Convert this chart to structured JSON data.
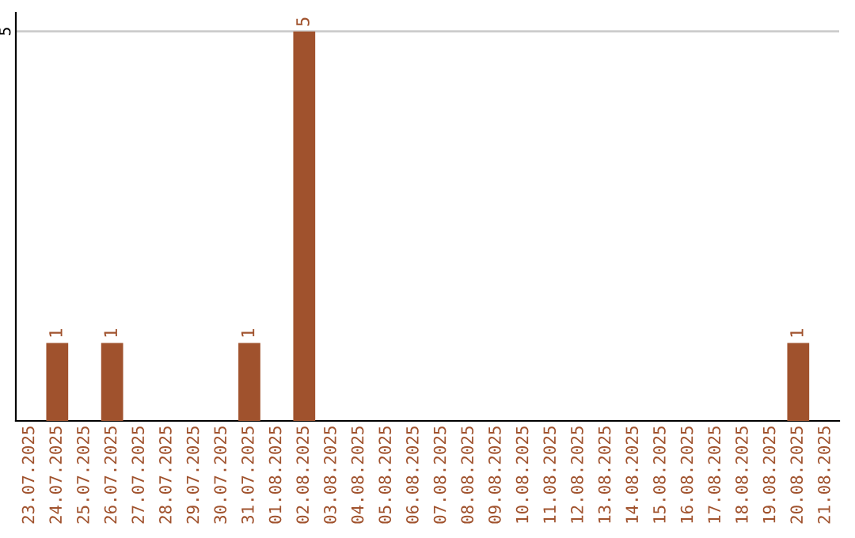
{
  "chart_data": {
    "type": "bar",
    "categories": [
      "23.07.2025",
      "24.07.2025",
      "25.07.2025",
      "26.07.2025",
      "27.07.2025",
      "28.07.2025",
      "29.07.2025",
      "30.07.2025",
      "31.07.2025",
      "01.08.2025",
      "02.08.2025",
      "03.08.2025",
      "04.08.2025",
      "05.08.2025",
      "06.08.2025",
      "07.08.2025",
      "08.08.2025",
      "09.08.2025",
      "10.08.2025",
      "11.08.2025",
      "12.08.2025",
      "13.08.2025",
      "14.08.2025",
      "15.08.2025",
      "16.08.2025",
      "17.08.2025",
      "18.08.2025",
      "19.08.2025",
      "20.08.2025",
      "21.08.2025"
    ],
    "values": [
      0,
      1,
      0,
      1,
      0,
      0,
      0,
      0,
      1,
      0,
      5,
      0,
      0,
      0,
      0,
      0,
      0,
      0,
      0,
      0,
      0,
      0,
      0,
      0,
      0,
      0,
      0,
      0,
      1,
      0
    ],
    "value_labels": [
      null,
      "1",
      null,
      "1",
      null,
      null,
      null,
      null,
      "1",
      null,
      "5",
      null,
      null,
      null,
      null,
      null,
      null,
      null,
      null,
      null,
      null,
      null,
      null,
      null,
      null,
      null,
      null,
      null,
      "1",
      null
    ],
    "color": "#a0522d",
    "ylim": [
      0,
      5.24
    ],
    "yticks": [
      5
    ],
    "grid": "y"
  }
}
